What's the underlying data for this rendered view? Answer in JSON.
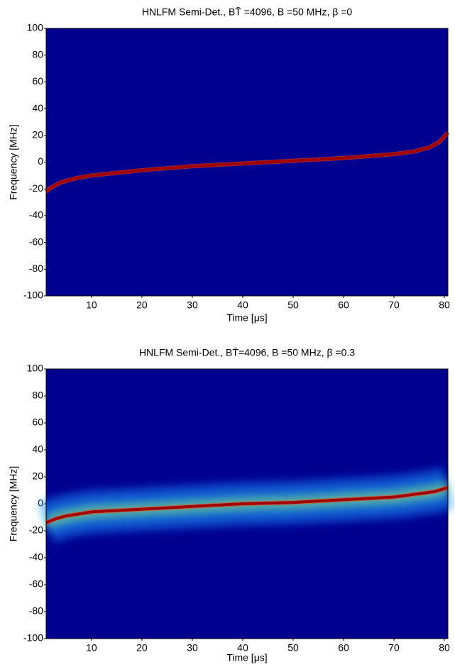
{
  "chart_data": [
    {
      "type": "line",
      "title": "HNLFM Semi-Det., BT̄ =4096, B =50 MHz, β =0",
      "xlabel": "Time [μs]",
      "ylabel": "Frequency [MHz]",
      "xlim": [
        1,
        80.7
      ],
      "ylim": [
        -100,
        100
      ],
      "xticks": [
        10,
        20,
        30,
        40,
        50,
        60,
        70,
        80
      ],
      "yticks": [
        -100,
        -80,
        -60,
        -40,
        -20,
        0,
        20,
        40,
        60,
        80,
        100
      ],
      "background": "#00008f",
      "noise": false,
      "series": [
        {
          "color": "#a00000",
          "x": [
            1,
            2,
            4,
            7,
            10,
            15,
            20,
            30,
            40,
            50,
            60,
            70,
            74,
            77,
            79,
            80.7
          ],
          "values": [
            -22,
            -19,
            -15,
            -12,
            -10,
            -8,
            -6,
            -3,
            -1,
            1,
            3,
            6,
            8,
            11,
            15,
            22
          ]
        }
      ]
    },
    {
      "type": "line",
      "title": "HNLFM Semi-Det., BT̄=4096, B =50 MHz, β =0.3",
      "xlabel": "Time [μs]",
      "ylabel": "Frequency [MHz]",
      "xlim": [
        1,
        80.7
      ],
      "ylim": [
        -100,
        100
      ],
      "xticks": [
        10,
        20,
        30,
        40,
        50,
        60,
        70,
        80
      ],
      "yticks": [
        -100,
        -80,
        -60,
        -40,
        -20,
        0,
        20,
        40,
        60,
        80,
        100
      ],
      "background": "#00008f",
      "noise": true,
      "series": [
        {
          "color": "#a00000",
          "x": [
            1,
            3,
            5,
            10,
            15,
            20,
            30,
            40,
            50,
            60,
            70,
            74,
            78,
            80.7
          ],
          "values": [
            -14,
            -11,
            -9,
            -6,
            -5,
            -4,
            -2,
            0,
            1,
            3,
            5,
            7,
            9,
            12
          ]
        }
      ]
    }
  ]
}
